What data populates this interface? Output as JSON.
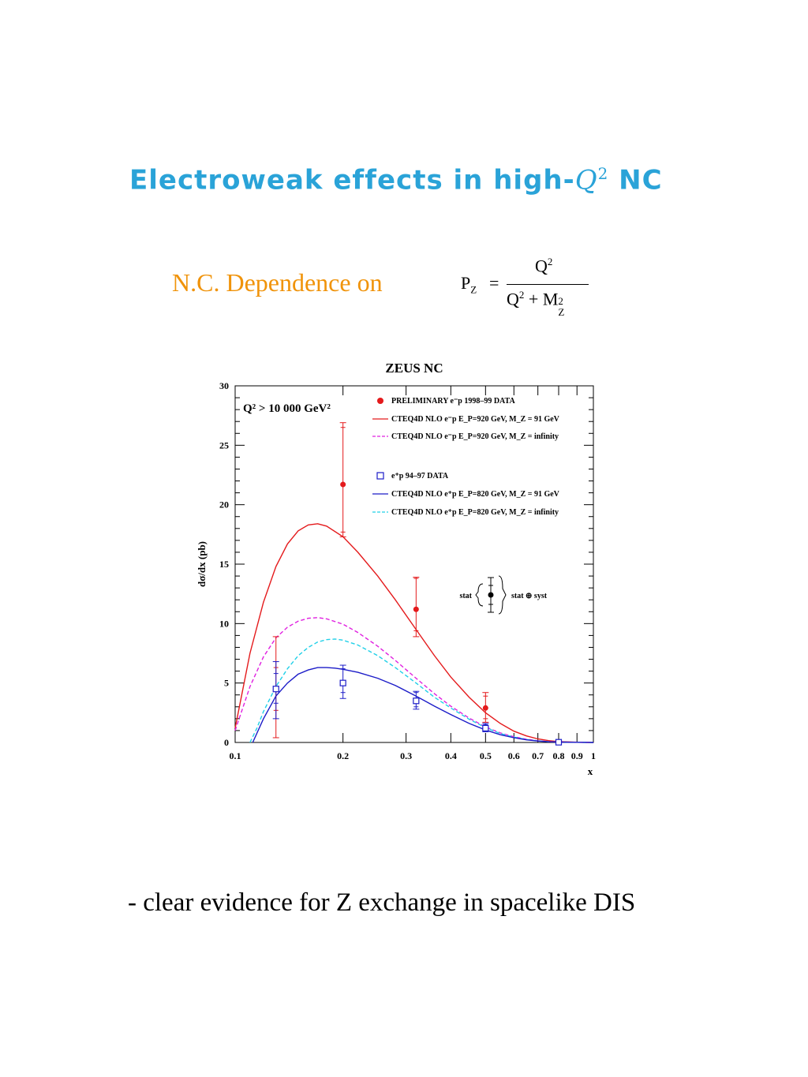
{
  "slide": {
    "title_prefix": "Electroweak effects in high-",
    "title_var": "Q",
    "title_sup": "2",
    "title_suffix": " NC",
    "nc_dependence": "N.C. Dependence on",
    "formula": {
      "lhs": "P",
      "lhs_sub": "Z",
      "eq": "=",
      "num": "Q",
      "num_sup": "2",
      "den_q": "Q",
      "den_q_sup": "2",
      "den_plus": "+",
      "den_m": "M",
      "den_m_sup": "2",
      "den_m_sub": "Z"
    },
    "bottom_note": "- clear evidence for Z exchange in spacelike DIS"
  },
  "colors": {
    "title": "#2aa3d8",
    "subtitle": "#f0930a",
    "red": "#e41a1c",
    "magenta": "#e020e0",
    "blue": "#1c1cc8",
    "cyan": "#20d0e8"
  },
  "chart_data": {
    "type": "line",
    "title": "ZEUS NC",
    "xlabel": "x",
    "ylabel": "dσ/dx   (pb)",
    "cut_label": "Q² > 10 000 GeV²",
    "x_scale": "log",
    "xlim": [
      0.1,
      1.0
    ],
    "ylim": [
      0,
      30
    ],
    "x_ticks": [
      0.1,
      0.2,
      0.3,
      0.4,
      0.5,
      0.6,
      0.7,
      0.8,
      0.9,
      1
    ],
    "x_tick_labels": [
      "0.1",
      "0.2",
      "0.3",
      "0.4",
      "0.5",
      "0.6",
      "0.7",
      "0.8",
      "0.9",
      "1"
    ],
    "y_ticks": [
      0,
      5,
      10,
      15,
      20,
      25,
      30
    ],
    "y_tick_labels": [
      "0",
      "5",
      "10",
      "15",
      "20",
      "25",
      "30"
    ],
    "legend": [
      {
        "label": "PRELIMINARY e⁻p 1998–99 DATA",
        "style": "dot",
        "color": "#e41a1c"
      },
      {
        "label": "CTEQ4D NLO e⁻p E_P=920 GeV, M_Z = 91 GeV",
        "style": "solid",
        "color": "#e41a1c"
      },
      {
        "label": "CTEQ4D NLO e⁻p E_P=920 GeV, M_Z = infinity",
        "style": "dashed",
        "color": "#e020e0"
      },
      {
        "label": "e⁺p 94–97 DATA",
        "style": "square",
        "color": "#1c1cc8"
      },
      {
        "label": "CTEQ4D NLO e⁺p E_P=820 GeV, M_Z = 91 GeV",
        "style": "solid",
        "color": "#1c1cc8"
      },
      {
        "label": "CTEQ4D NLO e⁺p E_P=820 GeV, M_Z = infinity",
        "style": "dashed",
        "color": "#20d0e8"
      }
    ],
    "error_legend": {
      "left": "stat",
      "right": "stat ⊕ syst"
    },
    "series": [
      {
        "name": "CTEQ4D NLO e⁻p E_P=920 GeV, M_Z = 91 GeV",
        "kind": "curve",
        "color": "#e41a1c",
        "dash": "none",
        "x": [
          0.1,
          0.11,
          0.12,
          0.13,
          0.14,
          0.15,
          0.16,
          0.17,
          0.18,
          0.2,
          0.22,
          0.25,
          0.28,
          0.32,
          0.36,
          0.4,
          0.45,
          0.5,
          0.55,
          0.6,
          0.65,
          0.7,
          0.75,
          0.8,
          0.9,
          1.0
        ],
        "y": [
          1.2,
          7.5,
          11.8,
          14.8,
          16.7,
          17.8,
          18.3,
          18.4,
          18.2,
          17.3,
          16.0,
          14.0,
          12.0,
          9.5,
          7.3,
          5.5,
          3.8,
          2.5,
          1.6,
          0.95,
          0.55,
          0.3,
          0.15,
          0.07,
          0.02,
          0.0
        ]
      },
      {
        "name": "CTEQ4D NLO e⁻p E_P=920 GeV, M_Z = infinity",
        "kind": "curve",
        "color": "#e020e0",
        "dash": "dashed",
        "x": [
          0.1,
          0.11,
          0.12,
          0.13,
          0.14,
          0.15,
          0.16,
          0.17,
          0.18,
          0.2,
          0.22,
          0.25,
          0.28,
          0.32,
          0.36,
          0.4,
          0.45,
          0.5,
          0.55,
          0.6,
          0.65,
          0.7,
          0.75,
          0.8,
          0.9,
          1.0
        ],
        "y": [
          1.0,
          4.7,
          7.2,
          8.8,
          9.7,
          10.2,
          10.45,
          10.5,
          10.4,
          9.95,
          9.25,
          8.1,
          6.9,
          5.4,
          4.1,
          3.05,
          2.05,
          1.3,
          0.8,
          0.48,
          0.27,
          0.14,
          0.07,
          0.03,
          0.01,
          0.0
        ]
      },
      {
        "name": "CTEQ4D NLO e⁺p E_P=820 GeV, M_Z = infinity",
        "kind": "curve",
        "color": "#20d0e8",
        "dash": "dashed",
        "x": [
          0.11,
          0.115,
          0.12,
          0.13,
          0.14,
          0.15,
          0.16,
          0.17,
          0.18,
          0.19,
          0.2,
          0.22,
          0.25,
          0.28,
          0.32,
          0.36,
          0.4,
          0.45,
          0.5,
          0.55,
          0.6,
          0.65,
          0.7,
          0.75,
          0.8,
          0.9,
          1.0
        ],
        "y": [
          0.0,
          1.2,
          2.6,
          4.7,
          6.2,
          7.3,
          8.0,
          8.45,
          8.65,
          8.7,
          8.6,
          8.2,
          7.3,
          6.3,
          5.0,
          3.8,
          2.9,
          1.95,
          1.25,
          0.75,
          0.45,
          0.25,
          0.13,
          0.06,
          0.03,
          0.01,
          0.0
        ]
      },
      {
        "name": "CTEQ4D NLO e⁺p E_P=820 GeV, M_Z = 91 GeV",
        "kind": "curve",
        "color": "#1c1cc8",
        "dash": "none",
        "x": [
          0.112,
          0.12,
          0.13,
          0.14,
          0.15,
          0.16,
          0.17,
          0.18,
          0.19,
          0.2,
          0.22,
          0.25,
          0.28,
          0.32,
          0.36,
          0.4,
          0.45,
          0.5,
          0.55,
          0.6,
          0.65,
          0.7,
          0.75,
          0.8,
          0.9,
          1.0
        ],
        "y": [
          0.0,
          2.0,
          3.9,
          5.0,
          5.75,
          6.1,
          6.3,
          6.3,
          6.25,
          6.15,
          5.9,
          5.4,
          4.8,
          3.9,
          3.05,
          2.35,
          1.6,
          1.05,
          0.65,
          0.4,
          0.22,
          0.12,
          0.06,
          0.03,
          0.01,
          0.0
        ]
      },
      {
        "name": "PRELIMINARY e⁻p 1998–99 DATA",
        "kind": "points",
        "marker": "dot",
        "color": "#e41a1c",
        "x": [
          0.13,
          0.2,
          0.32,
          0.5
        ],
        "y": [
          4.5,
          21.7,
          11.2,
          2.9
        ],
        "stat": [
          [
            2.7,
            6.3
          ],
          [
            17.7,
            26.5
          ],
          [
            9.4,
            13.8
          ],
          [
            2.0,
            3.9
          ]
        ],
        "total": [
          [
            0.4,
            8.9
          ],
          [
            17.3,
            26.9
          ],
          [
            8.9,
            13.9
          ],
          [
            1.7,
            4.2
          ]
        ]
      },
      {
        "name": "e⁺p 94–97 DATA",
        "kind": "points",
        "marker": "square",
        "color": "#1c1cc8",
        "x": [
          0.13,
          0.2,
          0.32,
          0.5,
          0.8
        ],
        "y": [
          4.5,
          5.0,
          3.5,
          1.2,
          0.02
        ],
        "stat": [
          [
            3.3,
            5.8
          ],
          [
            4.2,
            6.2
          ],
          [
            3.0,
            4.2
          ],
          [
            1.0,
            1.5
          ],
          [
            0.0,
            0.08
          ]
        ],
        "total": [
          [
            2.0,
            6.8
          ],
          [
            3.7,
            6.5
          ],
          [
            2.8,
            4.3
          ],
          [
            0.9,
            1.6
          ],
          [
            0.0,
            0.1
          ]
        ]
      }
    ]
  }
}
